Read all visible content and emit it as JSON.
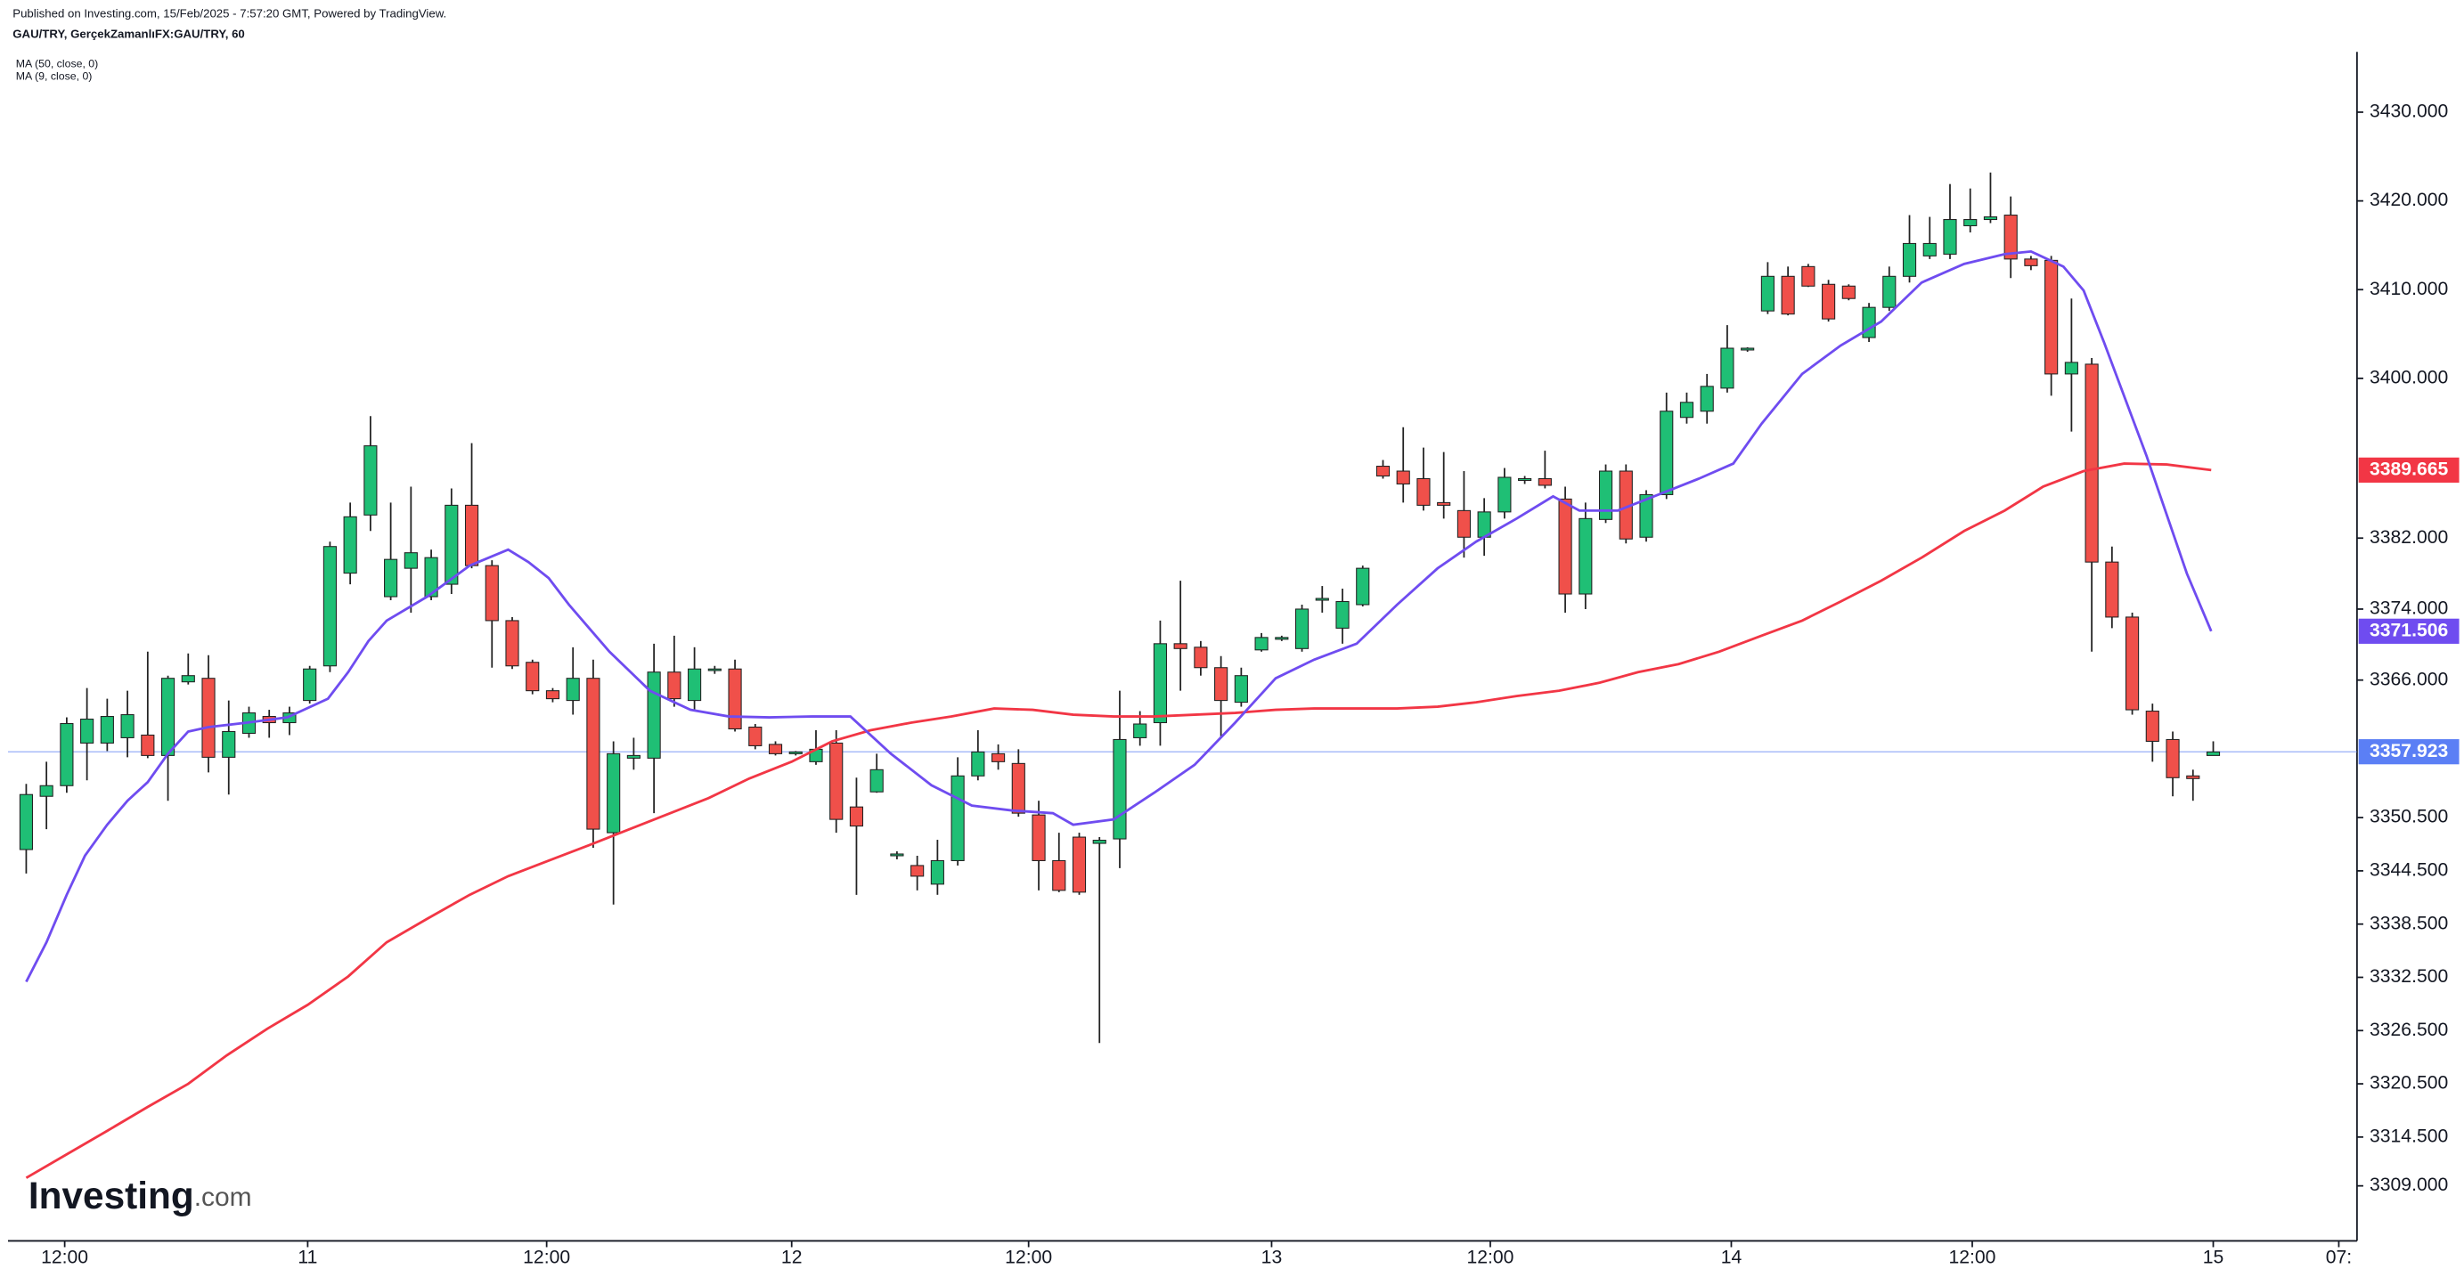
{
  "chart_data": {
    "type": "candlestick",
    "published": "Published on Investing.com, 15/Feb/2025 - 7:57:20 GMT, Powered by TradingView.",
    "title": "GAU/TRY, GerçekZamanlıFX:GAU/TRY, 60",
    "logo": {
      "name": "Investing",
      "suffix": ".com"
    },
    "up_color": "#1fbf75",
    "down_color": "#f0504a",
    "ylim": [
      3302.8,
      3436.8
    ],
    "yticks": [
      {
        "value": 3430,
        "label": "3430.000"
      },
      {
        "value": 3420,
        "label": "3420.000"
      },
      {
        "value": 3410,
        "label": "3410.000"
      },
      {
        "value": 3400,
        "label": "3400.000"
      },
      {
        "value": 3382,
        "label": "3382.000"
      },
      {
        "value": 3374,
        "label": "3374.000"
      },
      {
        "value": 3366,
        "label": "3366.000"
      },
      {
        "value": 3350.5,
        "label": "3350.500"
      },
      {
        "value": 3344.5,
        "label": "3344.500"
      },
      {
        "value": 3338.5,
        "label": "3338.500"
      },
      {
        "value": 3332.5,
        "label": "3332.500"
      },
      {
        "value": 3326.5,
        "label": "3326.500"
      },
      {
        "value": 3320.5,
        "label": "3320.500"
      },
      {
        "value": 3314.5,
        "label": "3314.500"
      },
      {
        "value": 3309,
        "label": "3309.000"
      }
    ],
    "xlim": [
      -0.9,
      115.1
    ],
    "xticks": [
      {
        "value": 1.9,
        "label": "12:00"
      },
      {
        "value": 13.9,
        "label": "11"
      },
      {
        "value": 25.7,
        "label": "12:00"
      },
      {
        "value": 37.8,
        "label": "12"
      },
      {
        "value": 49.5,
        "label": "12:00"
      },
      {
        "value": 61.5,
        "label": "13"
      },
      {
        "value": 72.3,
        "label": "12:00"
      },
      {
        "value": 84.2,
        "label": "14"
      },
      {
        "value": 96.1,
        "label": "12:00"
      },
      {
        "value": 108,
        "label": "15"
      },
      {
        "value": 114.2,
        "label": "07:"
      }
    ],
    "open": [
      3346.9,
      3352.9,
      3354.1,
      3358.9,
      3358.9,
      3359.5,
      3359.8,
      3357.5,
      3365.8,
      3366.2,
      3357.3,
      3360.0,
      3361.9,
      3361.2,
      3363.7,
      3367.6,
      3378.05,
      3384.6,
      3375.4,
      3378.6,
      3375.4,
      3376.8,
      3385.7,
      3378.9,
      3372.7,
      3368.0,
      3364.8,
      3363.7,
      3366.2,
      3348.8,
      3357.2,
      3357.2,
      3366.9,
      3363.7,
      3367.1,
      3367.25,
      3360.7,
      3358.75,
      3357.7,
      3356.8,
      3358.9,
      3351.7,
      3353.4,
      3346.2,
      3345.1,
      3343.0,
      3345.65,
      3355.2,
      3357.7,
      3356.6,
      3350.8,
      3345.65,
      3348.3,
      3347.6,
      3348.1,
      3359.5,
      3361.2,
      3370.1,
      3369.7,
      3367.4,
      3363.5,
      3369.4,
      3370.6,
      3369.55,
      3375.0,
      3371.85,
      3374.5,
      3390.1,
      3389.55,
      3388.7,
      3386.0,
      3385.1,
      3382.1,
      3384.95,
      3388.5,
      3388.7,
      3386.4,
      3375.7,
      3384.1,
      3389.55,
      3382.1,
      3386.9,
      3395.6,
      3396.3,
      3398.9,
      3403.2,
      3407.6,
      3411.5,
      3412.6,
      3410.6,
      3410.4,
      3404.6,
      3408.0,
      3411.5,
      3413.8,
      3414.0,
      3417.2,
      3417.9,
      3418.4,
      3413.45,
      3413.3,
      3400.5,
      3401.6,
      3379.3,
      3373.1,
      3362.5,
      3359.3,
      3355.2,
      3357.5
    ],
    "high": [
      3354.3,
      3356.8,
      3361.8,
      3365.1,
      3363.9,
      3364.8,
      3369.2,
      3366.5,
      3369.0,
      3368.8,
      3363.7,
      3363.0,
      3362.65,
      3363.0,
      3367.6,
      3381.6,
      3386.0,
      3395.75,
      3386.0,
      3387.8,
      3380.7,
      3387.6,
      3392.7,
      3379.5,
      3373.1,
      3368.3,
      3365.1,
      3369.7,
      3368.3,
      3359.1,
      3359.5,
      3370.1,
      3371.0,
      3369.7,
      3367.6,
      3368.3,
      3361.05,
      3359.1,
      3358.0,
      3360.35,
      3360.35,
      3355.0,
      3357.7,
      3346.7,
      3346.2,
      3348.0,
      3357.3,
      3360.35,
      3358.75,
      3358.2,
      3352.4,
      3348.8,
      3348.8,
      3348.3,
      3364.8,
      3362.5,
      3372.7,
      3377.2,
      3370.4,
      3368.7,
      3367.4,
      3371.3,
      3371.0,
      3374.5,
      3376.6,
      3376.3,
      3378.9,
      3390.8,
      3394.5,
      3392.2,
      3391.7,
      3389.55,
      3386.5,
      3389.9,
      3389.0,
      3391.85,
      3387.8,
      3386.0,
      3390.3,
      3390.3,
      3387.4,
      3398.4,
      3398.4,
      3400.5,
      3406.0,
      3403.5,
      3413.1,
      3412.6,
      3412.9,
      3411.1,
      3410.6,
      3408.5,
      3412.6,
      3418.4,
      3418.2,
      3421.9,
      3421.4,
      3423.2,
      3420.5,
      3413.8,
      3413.8,
      3409.0,
      3402.3,
      3381.05,
      3373.6,
      3363.35,
      3360.2,
      3355.9,
      3359.1
    ],
    "low": [
      3344.2,
      3349.2,
      3353.3,
      3354.7,
      3358.0,
      3357.3,
      3357.2,
      3352.4,
      3365.5,
      3355.6,
      3353.1,
      3359.5,
      3359.5,
      3359.8,
      3363.35,
      3366.9,
      3376.8,
      3382.8,
      3375.0,
      3373.6,
      3375.0,
      3375.7,
      3378.6,
      3367.4,
      3367.25,
      3364.4,
      3363.5,
      3362.1,
      3347.1,
      3340.7,
      3355.9,
      3351.0,
      3363.0,
      3362.5,
      3366.7,
      3360.2,
      3358.2,
      3357.5,
      3357.5,
      3356.45,
      3348.8,
      3341.8,
      3353.3,
      3345.8,
      3342.3,
      3341.8,
      3345.1,
      3354.7,
      3355.9,
      3350.6,
      3342.3,
      3342.1,
      3341.8,
      3325.1,
      3344.8,
      3358.6,
      3358.6,
      3364.8,
      3366.5,
      3359.5,
      3363.0,
      3369.2,
      3370.4,
      3369.2,
      3373.6,
      3370.1,
      3374.3,
      3388.7,
      3386.0,
      3385.1,
      3384.2,
      3379.8,
      3380.0,
      3384.2,
      3388.1,
      3387.6,
      3373.6,
      3374.0,
      3383.7,
      3381.4,
      3381.6,
      3386.4,
      3394.9,
      3394.9,
      3398.4,
      3403.0,
      3407.25,
      3407.1,
      3410.3,
      3406.4,
      3408.8,
      3404.1,
      3407.6,
      3410.8,
      3413.45,
      3413.45,
      3416.45,
      3417.5,
      3411.3,
      3412.2,
      3398.05,
      3394.0,
      3369.2,
      3371.85,
      3362.1,
      3356.8,
      3352.9,
      3352.4,
      3357.5
    ],
    "close": [
      3353.1,
      3354.1,
      3361.1,
      3361.6,
      3361.9,
      3362.1,
      3357.5,
      3366.2,
      3366.5,
      3357.3,
      3360.2,
      3362.3,
      3361.2,
      3362.3,
      3367.25,
      3381.05,
      3384.4,
      3392.4,
      3379.6,
      3380.35,
      3379.8,
      3385.7,
      3378.9,
      3372.7,
      3367.6,
      3364.8,
      3363.9,
      3366.2,
      3349.2,
      3357.7,
      3357.5,
      3366.9,
      3363.9,
      3367.25,
      3367.25,
      3360.5,
      3358.6,
      3357.7,
      3357.9,
      3358.2,
      3350.3,
      3349.55,
      3355.9,
      3346.4,
      3343.9,
      3345.65,
      3355.2,
      3357.9,
      3356.8,
      3351.0,
      3345.65,
      3342.3,
      3342.1,
      3347.95,
      3359.3,
      3361.05,
      3370.1,
      3369.55,
      3367.4,
      3363.7,
      3366.5,
      3370.8,
      3370.8,
      3374.0,
      3375.2,
      3374.85,
      3378.6,
      3389.0,
      3388.1,
      3385.7,
      3385.7,
      3382.1,
      3384.95,
      3388.85,
      3388.7,
      3387.95,
      3375.7,
      3384.2,
      3389.55,
      3381.9,
      3386.9,
      3396.3,
      3397.3,
      3399.1,
      3403.4,
      3403.4,
      3411.5,
      3407.25,
      3410.4,
      3406.7,
      3409.0,
      3408.0,
      3411.5,
      3415.2,
      3415.2,
      3417.9,
      3417.9,
      3418.2,
      3413.45,
      3412.7,
      3400.5,
      3401.8,
      3379.3,
      3373.1,
      3362.65,
      3359.1,
      3355.0,
      3354.9,
      3357.9
    ],
    "series": [
      {
        "name": "MA (50, close, 0)",
        "color": "#f23645",
        "x": [
          0.0,
          2.0,
          4.0,
          6.0,
          8.0,
          9.9,
          11.9,
          13.9,
          15.9,
          17.8,
          19.8,
          21.9,
          23.8,
          25.8,
          27.8,
          29.8,
          31.8,
          33.7,
          35.7,
          37.8,
          39.8,
          41.7,
          43.7,
          45.7,
          47.8,
          49.7,
          51.7,
          53.7,
          55.7,
          57.7,
          59.7,
          61.7,
          63.6,
          65.7,
          67.7,
          69.7,
          71.6,
          73.6,
          75.7,
          77.7,
          79.6,
          81.6,
          83.6,
          85.7,
          87.7,
          89.6,
          91.6,
          93.6,
          95.7,
          97.7,
          99.6,
          101.6,
          103.6,
          105.7,
          107.9
        ],
        "values": [
          3309.9,
          3312.55,
          3315.2,
          3317.9,
          3320.5,
          3323.7,
          3326.7,
          3329.4,
          3332.6,
          3336.45,
          3339.1,
          3341.8,
          3343.9,
          3345.65,
          3347.4,
          3349.2,
          3351.0,
          3352.7,
          3354.9,
          3356.8,
          3359.1,
          3360.35,
          3361.2,
          3361.9,
          3362.8,
          3362.65,
          3362.1,
          3361.9,
          3361.9,
          3362.1,
          3362.3,
          3362.65,
          3362.8,
          3362.8,
          3362.8,
          3363.0,
          3363.5,
          3364.2,
          3364.8,
          3365.7,
          3366.9,
          3367.8,
          3369.2,
          3371.0,
          3372.7,
          3374.85,
          3377.2,
          3379.8,
          3382.8,
          3385.1,
          3387.8,
          3389.55,
          3390.4,
          3390.3,
          3389.665
        ]
      },
      {
        "name": "MA (9, close, 0)",
        "color": "#6f4cf0",
        "x": [
          0.0,
          1.0,
          2.0,
          2.9,
          4.0,
          5.0,
          6.0,
          7.0,
          8.0,
          9.0,
          10.9,
          12.9,
          14.9,
          15.9,
          16.9,
          17.8,
          19.8,
          21.9,
          23.8,
          24.8,
          25.8,
          26.8,
          27.8,
          28.8,
          30.8,
          32.8,
          34.7,
          36.7,
          38.8,
          40.7,
          42.7,
          44.7,
          46.7,
          48.7,
          50.7,
          51.7,
          53.7,
          55.7,
          57.7,
          59.7,
          61.7,
          63.6,
          65.7,
          67.7,
          69.7,
          71.6,
          73.6,
          75.4,
          76.7,
          78.6,
          80.6,
          82.6,
          84.3,
          85.7,
          87.7,
          89.6,
          91.6,
          93.6,
          95.7,
          97.7,
          99.0,
          100.6,
          101.6,
          102.6,
          104.7,
          106.7,
          107.9
        ],
        "values": [
          3332.0,
          3336.45,
          3341.8,
          3346.2,
          3349.7,
          3352.4,
          3354.5,
          3357.7,
          3360.2,
          3360.7,
          3361.2,
          3361.8,
          3363.9,
          3366.9,
          3370.4,
          3372.7,
          3375.4,
          3378.9,
          3380.7,
          3379.3,
          3377.5,
          3374.5,
          3371.85,
          3369.2,
          3364.8,
          3362.65,
          3361.9,
          3361.8,
          3361.9,
          3361.9,
          3357.7,
          3354.15,
          3351.85,
          3351.3,
          3351.0,
          3349.7,
          3350.3,
          3353.3,
          3356.45,
          3361.2,
          3366.2,
          3368.3,
          3370.1,
          3374.5,
          3378.6,
          3381.6,
          3384.2,
          3386.7,
          3385.1,
          3385.1,
          3386.9,
          3388.7,
          3390.4,
          3394.9,
          3400.5,
          3403.7,
          3406.4,
          3410.8,
          3412.9,
          3414.0,
          3414.3,
          3412.6,
          3409.9,
          3404.1,
          3391.3,
          3378.0,
          3371.506
        ]
      }
    ],
    "last_labels": [
      {
        "value": 3389.665,
        "color": "#f23645"
      },
      {
        "value": 3371.506,
        "color": "#6f4cf0"
      },
      {
        "value": 3357.923,
        "color": "#5b7ff5"
      }
    ]
  }
}
